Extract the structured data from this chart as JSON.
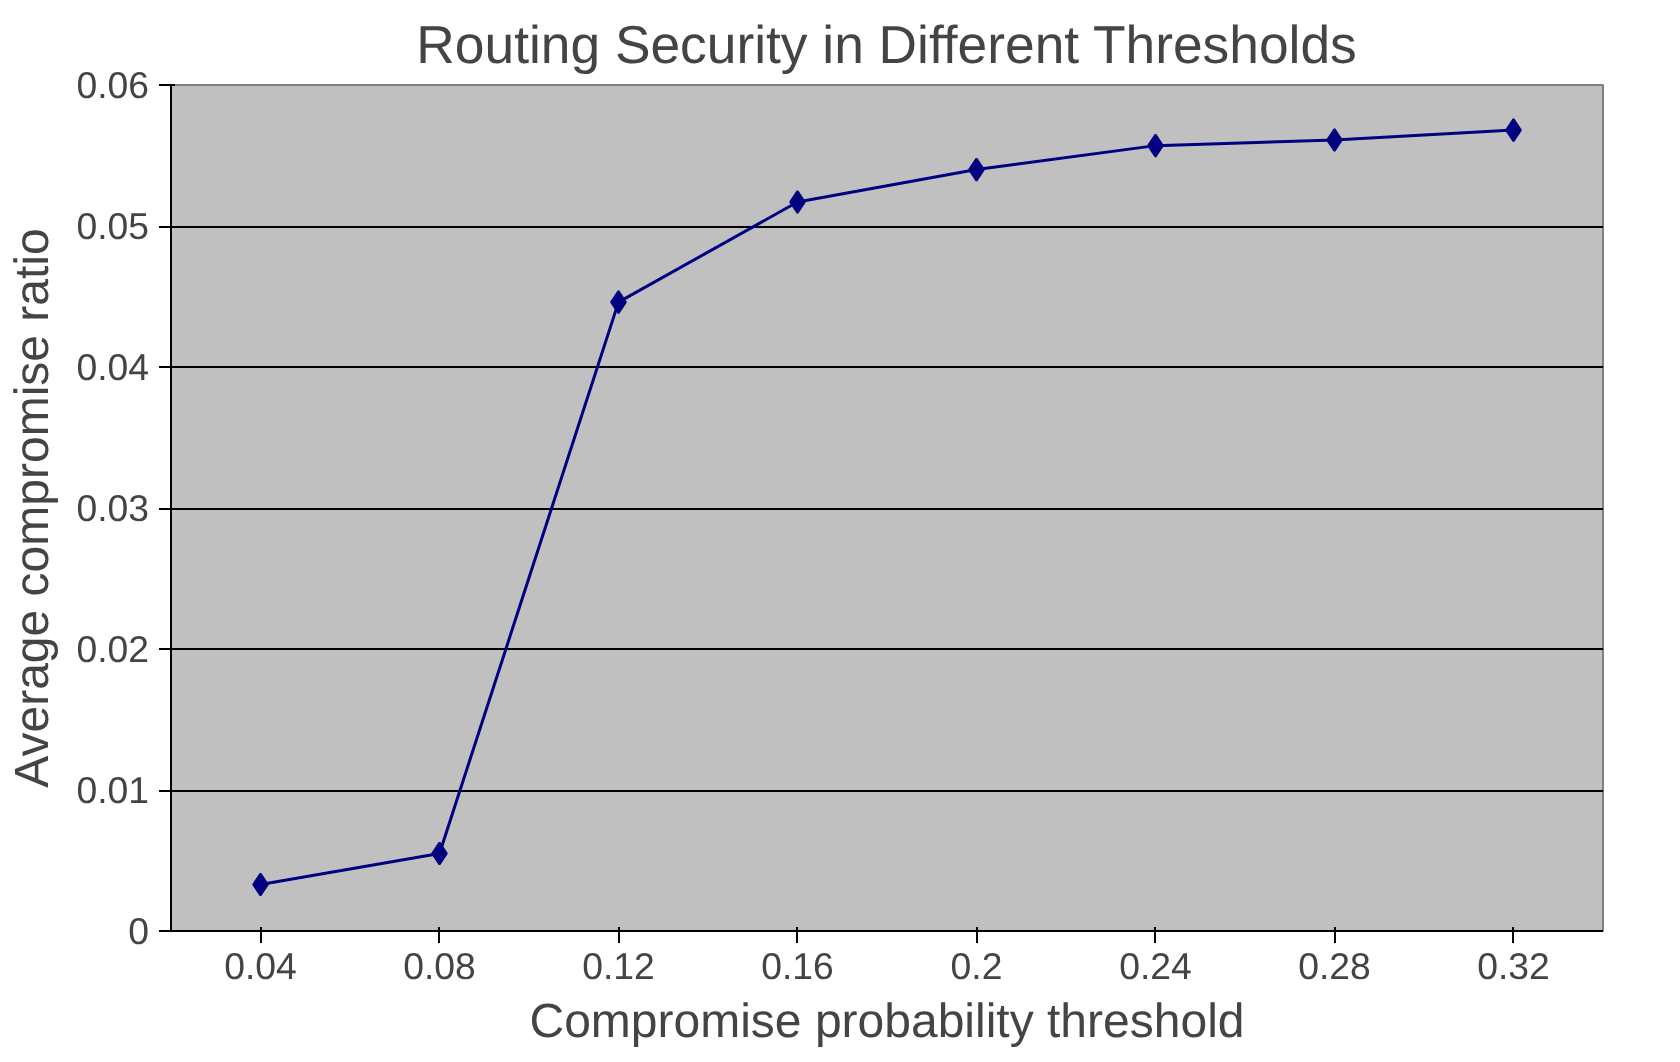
{
  "chart_data": {
    "type": "line",
    "title": "Routing Security in Different Thresholds",
    "xlabel": "Compromise probability threshold",
    "ylabel": "Average compromise ratio",
    "categories": [
      "0.04",
      "0.08",
      "0.12",
      "0.16",
      "0.2",
      "0.24",
      "0.28",
      "0.32"
    ],
    "series": [
      {
        "color": "#000080",
        "values": [
          0.0033,
          0.0055,
          0.0446,
          0.0517,
          0.054,
          0.0557,
          0.0561,
          0.0568
        ]
      }
    ],
    "ylim": [
      0,
      0.06
    ],
    "yticks": [
      0,
      0.01,
      0.02,
      0.03,
      0.04,
      0.05,
      0.06
    ],
    "grid": "y",
    "marker": "diamond",
    "line_style": "solid"
  }
}
